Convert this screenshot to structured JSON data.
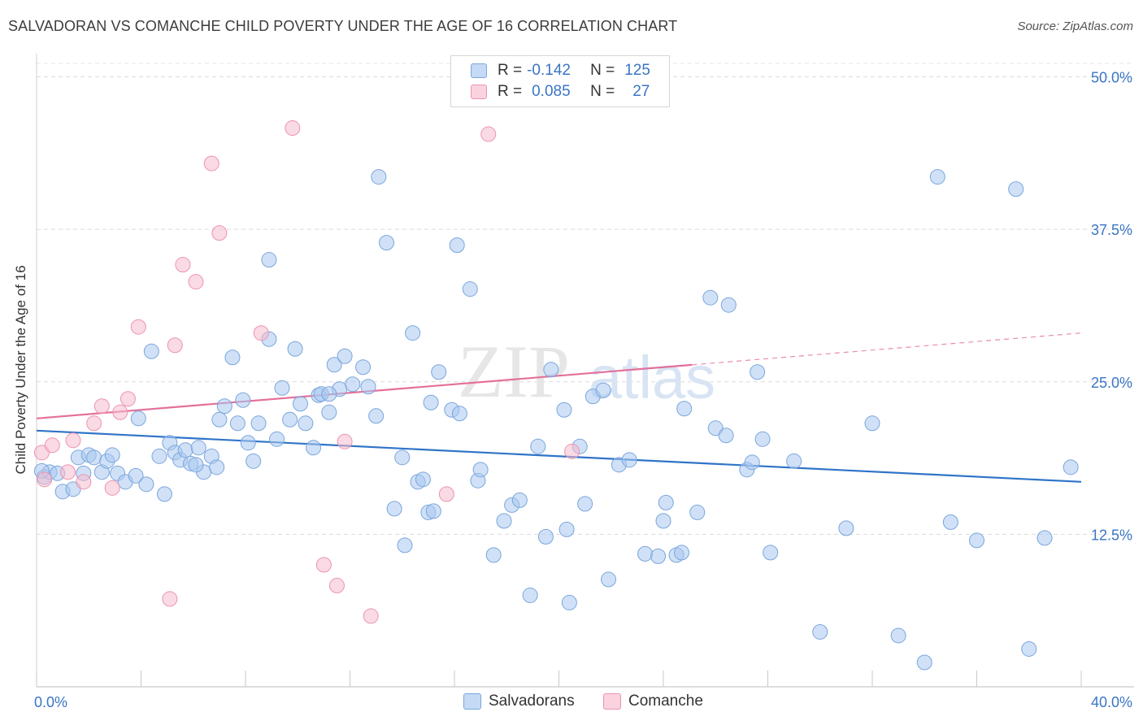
{
  "header": {
    "title": "SALVADORAN VS COMANCHE CHILD POVERTY UNDER THE AGE OF 16 CORRELATION CHART",
    "source": "Source: ZipAtlas.com"
  },
  "watermark": {
    "zip": "ZIP",
    "atlas": "atlas"
  },
  "legend": {
    "rows": [
      {
        "r_label": "R =",
        "r_value": "-0.142",
        "n_label": "N =",
        "n_value": "125",
        "color": "#a9c8f0"
      },
      {
        "r_label": "R =",
        "r_value": "0.085",
        "n_label": "N =",
        "n_value": "27",
        "color": "#f6bccd"
      }
    ]
  },
  "bottom_legend": {
    "items": [
      {
        "label": "Salvadorans",
        "color": "#a9c8f0"
      },
      {
        "label": "Comanche",
        "color": "#f6bccd"
      }
    ]
  },
  "colors": {
    "salvadoran_fill": "#a9c8f0",
    "salvadoran_stroke": "#7aa6dc",
    "salvadoran_line": "#2f74c8",
    "comanche_fill": "#f6bccd",
    "comanche_stroke": "#ec93b0",
    "comanche_line": "#e4709a",
    "tick_label": "#3a75c4"
  },
  "chart_data": {
    "type": "scatter",
    "title": "SALVADORAN VS COMANCHE CHILD POVERTY UNDER THE AGE OF 16 CORRELATION CHART",
    "xlabel": "",
    "ylabel": "Child Poverty Under the Age of 16",
    "xlim": [
      0,
      40
    ],
    "ylim": [
      0,
      51.5
    ],
    "x_tick_labels": [
      "0.0%",
      "40.0%"
    ],
    "x_tick_values": [
      0,
      40
    ],
    "x_minor_ticks": [
      0,
      4,
      8,
      12,
      16,
      20,
      24,
      28,
      32,
      36,
      40
    ],
    "y_ticks": [
      12.5,
      25,
      37.5,
      50
    ],
    "y_tick_labels": [
      "12.5%",
      "25.0%",
      "37.5%",
      "50.0%"
    ],
    "grid": true,
    "legend_position": "top-center",
    "series": [
      {
        "name": "Salvadorans",
        "R": -0.142,
        "N": 125,
        "trend": {
          "x": [
            0,
            40
          ],
          "y": [
            21.0,
            16.8
          ],
          "dashed_from": null
        },
        "points": [
          [
            0.3,
            17.2
          ],
          [
            0.5,
            17.6
          ],
          [
            0.8,
            17.5
          ],
          [
            1.0,
            16.0
          ],
          [
            1.4,
            16.2
          ],
          [
            1.6,
            18.8
          ],
          [
            1.8,
            17.5
          ],
          [
            2.0,
            19.0
          ],
          [
            2.2,
            18.8
          ],
          [
            2.5,
            17.6
          ],
          [
            2.7,
            18.5
          ],
          [
            2.9,
            19.0
          ],
          [
            3.1,
            17.5
          ],
          [
            3.4,
            16.8
          ],
          [
            3.8,
            17.3
          ],
          [
            4.2,
            16.6
          ],
          [
            4.7,
            18.9
          ],
          [
            4.9,
            15.8
          ],
          [
            5.1,
            20.0
          ],
          [
            5.3,
            19.2
          ],
          [
            5.5,
            18.6
          ],
          [
            5.7,
            19.4
          ],
          [
            5.9,
            18.3
          ],
          [
            6.2,
            19.6
          ],
          [
            6.4,
            17.6
          ],
          [
            6.7,
            18.9
          ],
          [
            6.9,
            18.0
          ],
          [
            4.4,
            27.5
          ],
          [
            3.9,
            22.0
          ],
          [
            7.0,
            21.9
          ],
          [
            7.2,
            23.0
          ],
          [
            7.5,
            27.0
          ],
          [
            7.7,
            21.6
          ],
          [
            7.9,
            23.5
          ],
          [
            8.1,
            20.0
          ],
          [
            8.3,
            18.5
          ],
          [
            8.5,
            21.6
          ],
          [
            8.9,
            28.5
          ],
          [
            8.9,
            35.0
          ],
          [
            9.2,
            20.3
          ],
          [
            9.4,
            24.5
          ],
          [
            9.7,
            21.9
          ],
          [
            9.9,
            27.7
          ],
          [
            10.1,
            23.2
          ],
          [
            10.3,
            21.6
          ],
          [
            10.6,
            19.6
          ],
          [
            10.8,
            23.9
          ],
          [
            10.9,
            24.0
          ],
          [
            11.2,
            22.5
          ],
          [
            11.4,
            26.4
          ],
          [
            11.6,
            24.4
          ],
          [
            11.8,
            27.1
          ],
          [
            11.2,
            24.0
          ],
          [
            12.1,
            24.8
          ],
          [
            12.5,
            26.2
          ],
          [
            12.7,
            24.6
          ],
          [
            13.0,
            22.2
          ],
          [
            13.1,
            41.8
          ],
          [
            13.4,
            36.4
          ],
          [
            13.7,
            14.6
          ],
          [
            14.0,
            18.8
          ],
          [
            14.1,
            11.6
          ],
          [
            14.4,
            29.0
          ],
          [
            14.6,
            16.8
          ],
          [
            14.8,
            17.0
          ],
          [
            15.0,
            14.3
          ],
          [
            15.2,
            14.4
          ],
          [
            15.1,
            23.3
          ],
          [
            15.4,
            25.8
          ],
          [
            15.9,
            22.7
          ],
          [
            16.1,
            36.2
          ],
          [
            16.2,
            22.4
          ],
          [
            16.6,
            32.6
          ],
          [
            16.9,
            16.9
          ],
          [
            17.0,
            17.8
          ],
          [
            17.5,
            10.8
          ],
          [
            17.9,
            13.6
          ],
          [
            18.2,
            14.9
          ],
          [
            18.5,
            15.3
          ],
          [
            18.9,
            7.5
          ],
          [
            19.2,
            19.7
          ],
          [
            19.5,
            12.3
          ],
          [
            19.7,
            26.0
          ],
          [
            20.2,
            22.7
          ],
          [
            20.3,
            12.9
          ],
          [
            20.4,
            6.9
          ],
          [
            20.8,
            19.7
          ],
          [
            21.0,
            15.0
          ],
          [
            21.3,
            23.8
          ],
          [
            21.7,
            24.3
          ],
          [
            22.3,
            18.2
          ],
          [
            21.9,
            8.8
          ],
          [
            22.7,
            18.6
          ],
          [
            23.3,
            10.9
          ],
          [
            23.8,
            10.7
          ],
          [
            24.0,
            13.6
          ],
          [
            24.1,
            15.1
          ],
          [
            24.5,
            10.8
          ],
          [
            24.7,
            11.0
          ],
          [
            25.3,
            14.3
          ],
          [
            25.8,
            31.9
          ],
          [
            26.0,
            21.2
          ],
          [
            26.4,
            20.6
          ],
          [
            26.5,
            31.3
          ],
          [
            27.6,
            25.8
          ],
          [
            27.8,
            20.3
          ],
          [
            28.1,
            11.0
          ],
          [
            27.2,
            17.8
          ],
          [
            27.4,
            18.4
          ],
          [
            24.8,
            22.8
          ],
          [
            29.0,
            18.5
          ],
          [
            30.0,
            4.5
          ],
          [
            31.0,
            13.0
          ],
          [
            32.0,
            21.6
          ],
          [
            33.0,
            4.2
          ],
          [
            34.0,
            2.0
          ],
          [
            34.5,
            41.8
          ],
          [
            35.0,
            13.5
          ],
          [
            36.0,
            12.0
          ],
          [
            38.0,
            3.1
          ],
          [
            37.5,
            40.8
          ],
          [
            38.6,
            12.2
          ],
          [
            39.6,
            18.0
          ],
          [
            6.1,
            18.2
          ],
          [
            0.2,
            17.7
          ]
        ]
      },
      {
        "name": "Comanche",
        "R": 0.085,
        "N": 27,
        "trend": {
          "x": [
            0,
            40
          ],
          "y": [
            22.0,
            29.0
          ],
          "solid_until_x": 25.1
        },
        "points": [
          [
            0.2,
            19.2
          ],
          [
            0.6,
            19.8
          ],
          [
            1.4,
            20.2
          ],
          [
            1.8,
            16.8
          ],
          [
            2.2,
            21.6
          ],
          [
            2.5,
            23.0
          ],
          [
            2.9,
            16.3
          ],
          [
            3.2,
            22.5
          ],
          [
            3.5,
            23.6
          ],
          [
            3.9,
            29.5
          ],
          [
            5.3,
            28.0
          ],
          [
            5.6,
            34.6
          ],
          [
            6.1,
            33.2
          ],
          [
            6.7,
            42.9
          ],
          [
            7.0,
            37.2
          ],
          [
            8.6,
            29.0
          ],
          [
            9.8,
            45.8
          ],
          [
            11.0,
            10.0
          ],
          [
            11.5,
            8.3
          ],
          [
            11.8,
            20.1
          ],
          [
            12.8,
            5.8
          ],
          [
            15.7,
            15.8
          ],
          [
            17.3,
            45.3
          ],
          [
            20.5,
            19.3
          ],
          [
            5.1,
            7.2
          ],
          [
            1.2,
            17.6
          ],
          [
            0.3,
            17.0
          ]
        ]
      }
    ]
  }
}
